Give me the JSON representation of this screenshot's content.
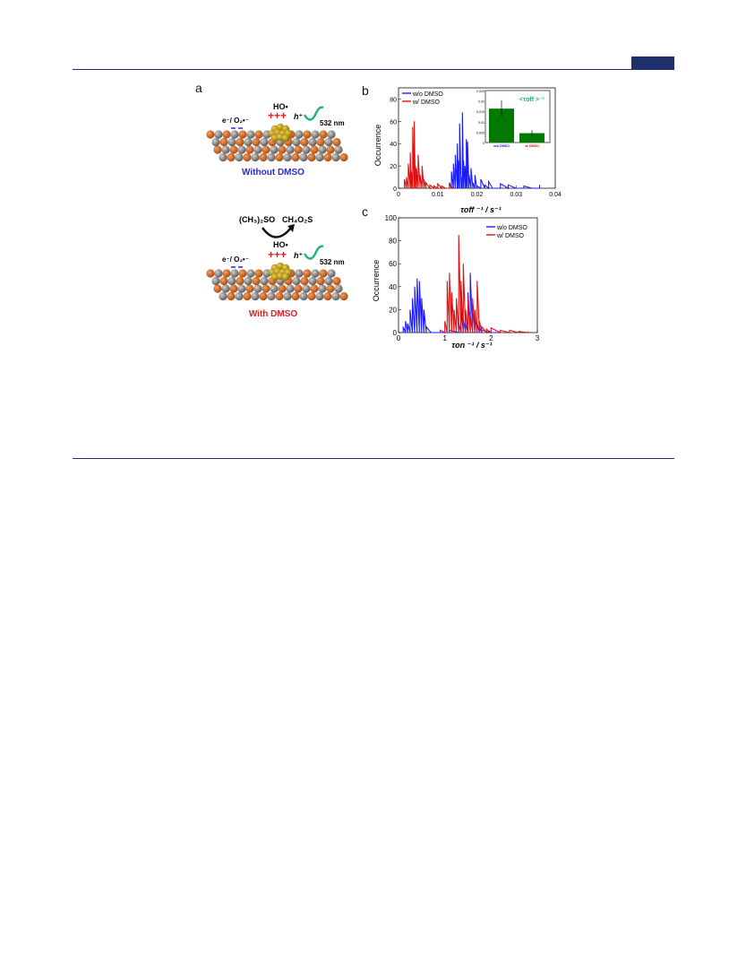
{
  "page": {},
  "panels": {
    "a": "a",
    "b": "b",
    "c": "c"
  },
  "schematic": {
    "top": {
      "electron_label": "e⁻/ O₂•⁻",
      "radical_label": "HO•",
      "plus_signs": "+++",
      "hole_label": "h⁺",
      "laser_label": "532 nm",
      "caption": "Without DMSO",
      "caption_color": "#2b2bcc"
    },
    "reaction": {
      "reactant": "(CH₃)₂SO",
      "product": "CH₄O₂S"
    },
    "bottom": {
      "electron_label": "e⁻/ O₂•⁻",
      "radical_label": "HO•",
      "plus_signs": "+++",
      "hole_label": "h⁺",
      "laser_label": "532 nm",
      "caption": "With DMSO",
      "caption_color": "#e02020"
    },
    "colors": {
      "ti_atom": "#d96a1e",
      "o_atom": "#8a8a8a",
      "au_atom": "#c9a316",
      "plus": "#e02020",
      "laser": "#22b573"
    }
  },
  "chart_data": [
    {
      "type": "line",
      "panel": "b",
      "xlabel": "τoff ⁻¹ / s⁻¹",
      "ylabel": "Occurrence",
      "xlim": [
        0,
        0.04
      ],
      "ylim": [
        0,
        90
      ],
      "xticks": [
        "0",
        "0.01",
        "0.02",
        "0.03",
        "0.04"
      ],
      "yticks": [
        "0",
        "20",
        "40",
        "60",
        "80"
      ],
      "legend": {
        "placement": "top-left",
        "entries": [
          "w/o DMSO",
          "w/ DMSO"
        ]
      },
      "series": [
        {
          "name": "w/o DMSO",
          "color": "#1a1aff",
          "x": [
            0.0125,
            0.013,
            0.0135,
            0.014,
            0.0145,
            0.015,
            0.0153,
            0.0156,
            0.016,
            0.0163,
            0.0166,
            0.017,
            0.0173,
            0.0176,
            0.018,
            0.0185,
            0.019,
            0.0195,
            0.02,
            0.021,
            0.022,
            0.023,
            0.024,
            0.026,
            0.028,
            0.03,
            0.032,
            0.034,
            0.036
          ],
          "y": [
            0,
            5,
            15,
            22,
            30,
            40,
            25,
            58,
            10,
            68,
            25,
            20,
            44,
            42,
            12,
            18,
            5,
            12,
            2,
            8,
            3,
            6,
            0,
            4,
            3,
            0,
            2,
            0,
            3
          ]
        },
        {
          "name": "w/ DMSO",
          "color": "#e01010",
          "x": [
            0.001,
            0.0015,
            0.002,
            0.0025,
            0.003,
            0.0033,
            0.0036,
            0.004,
            0.0043,
            0.0046,
            0.005,
            0.0055,
            0.006,
            0.0065,
            0.007,
            0.008,
            0.009,
            0.01,
            0.011,
            0.012,
            0.013,
            0.014
          ],
          "y": [
            0,
            8,
            10,
            22,
            32,
            15,
            55,
            60,
            20,
            18,
            30,
            12,
            20,
            8,
            5,
            3,
            2,
            4,
            2,
            0,
            3,
            0
          ]
        }
      ],
      "inset": {
        "type": "bar",
        "title": "<τoff >⁻¹",
        "categories": [
          "w/o DMSO",
          "w/ DMSO"
        ],
        "values": [
          0.0163,
          0.0045
        ],
        "errors": [
          0.004,
          0.0015
        ],
        "ylim": [
          0,
          0.025
        ],
        "yticks": [
          "0",
          "0.005",
          "0.01",
          "0.015",
          "0.02",
          "0.025"
        ],
        "bar_color": "#007a00",
        "label_colors": [
          "#1a1aff",
          "#e01010"
        ]
      }
    },
    {
      "type": "line",
      "panel": "c",
      "xlabel": "τon ⁻¹ / s⁻¹",
      "ylabel": "Occurrence",
      "xlim": [
        0,
        3
      ],
      "ylim": [
        0,
        100
      ],
      "xticks": [
        "0",
        "1",
        "2",
        "3"
      ],
      "yticks": [
        "0",
        "20",
        "40",
        "60",
        "80",
        "100"
      ],
      "legend": {
        "placement": "top-right",
        "entries": [
          "w/o DMSO",
          "w/ DMSO"
        ]
      },
      "series": [
        {
          "name": "w/o DMSO",
          "color": "#1a1aff",
          "x": [
            0.1,
            0.15,
            0.2,
            0.25,
            0.3,
            0.35,
            0.4,
            0.45,
            0.5,
            0.55,
            0.6,
            0.7,
            0.9,
            1.1,
            1.3,
            1.35,
            1.4,
            1.45,
            1.5,
            1.55,
            1.6,
            1.65,
            1.7,
            1.75,
            1.8,
            2.0,
            2.2
          ],
          "y": [
            5,
            10,
            8,
            20,
            30,
            40,
            47,
            45,
            30,
            20,
            5,
            0,
            0,
            2,
            8,
            22,
            12,
            8,
            35,
            52,
            25,
            15,
            8,
            4,
            2,
            0,
            0
          ]
        },
        {
          "name": "w/ DMSO",
          "color": "#e01010",
          "x": [
            0.9,
            1.0,
            1.05,
            1.1,
            1.15,
            1.2,
            1.25,
            1.3,
            1.35,
            1.4,
            1.45,
            1.5,
            1.55,
            1.6,
            1.65,
            1.7,
            1.75,
            1.8,
            1.9,
            2.0,
            2.2,
            2.4,
            2.6,
            2.8
          ],
          "y": [
            2,
            10,
            45,
            52,
            35,
            20,
            30,
            85,
            45,
            60,
            20,
            30,
            15,
            30,
            20,
            45,
            10,
            5,
            3,
            4,
            2,
            2,
            1,
            1
          ]
        }
      ]
    }
  ]
}
